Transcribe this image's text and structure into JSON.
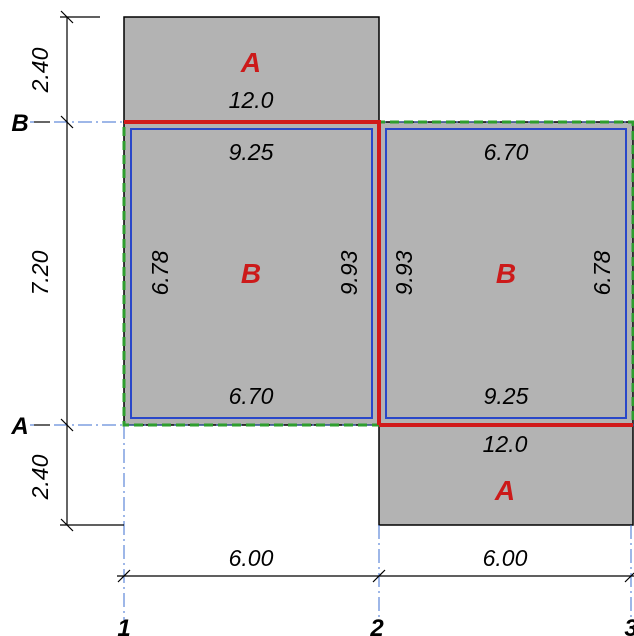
{
  "colors": {
    "slab": "#b3b3b3",
    "beam": "#d11a1a",
    "panel_outline": "#2947c9",
    "boundary_dashed": "#2e9e2e",
    "gridline": "#3d6fd1",
    "label_red": "#cc1a1a"
  },
  "grid": {
    "rows": [
      "B",
      "A"
    ],
    "columns": [
      "1",
      "2",
      "3"
    ]
  },
  "dimensions": {
    "vertical": [
      "2.40",
      "7.20",
      "2.40"
    ],
    "horizontal": [
      "6.00",
      "6.00"
    ]
  },
  "panels": {
    "top_a": {
      "label": "A",
      "value": "12.0"
    },
    "left_b": {
      "label": "B",
      "top": "9.25",
      "bottom": "6.70",
      "left": "6.78",
      "right": "9.93"
    },
    "right_b": {
      "label": "B",
      "top": "6.70",
      "bottom": "9.25",
      "left": "9.93",
      "right": "6.78"
    },
    "bottom_a": {
      "label": "A",
      "value": "12.0"
    }
  }
}
